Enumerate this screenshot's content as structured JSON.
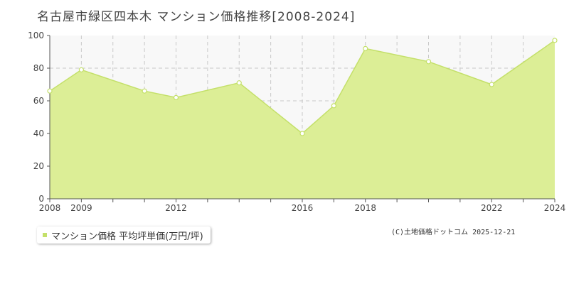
{
  "title": "名古屋市緑区四本木 マンション価格推移[2008-2024]",
  "legend": {
    "label": "マンション価格 平均坪単価(万円/坪)"
  },
  "credit": "(C)土地価格ドットコム 2025-12-21",
  "colors": {
    "fill": "#dcee96",
    "line": "#c4e06a",
    "marker_stroke": "#c4e06a",
    "marker_fill": "#ffffff",
    "plot_background": "#f8f8f8",
    "grid": "#c8c8c8",
    "axis": "#555555"
  },
  "chart_data": {
    "type": "area",
    "x": [
      2008,
      2009,
      2011,
      2012,
      2014,
      2016,
      2017,
      2018,
      2020,
      2022,
      2024
    ],
    "series": [
      {
        "name": "マンション価格 平均坪単価(万円/坪)",
        "values": [
          66,
          79,
          66,
          62,
          71,
          40,
          57,
          92,
          84,
          70,
          97
        ]
      }
    ],
    "xlim": [
      2008,
      2024
    ],
    "ylim": [
      0,
      100
    ],
    "x_tick_labels": [
      "2008",
      "2009",
      "2012",
      "2016",
      "2018",
      "2022",
      "2024"
    ],
    "y_tick_labels": [
      "0",
      "20",
      "40",
      "60",
      "80",
      "100"
    ],
    "grid": true,
    "legend_position": "bottom-left"
  }
}
